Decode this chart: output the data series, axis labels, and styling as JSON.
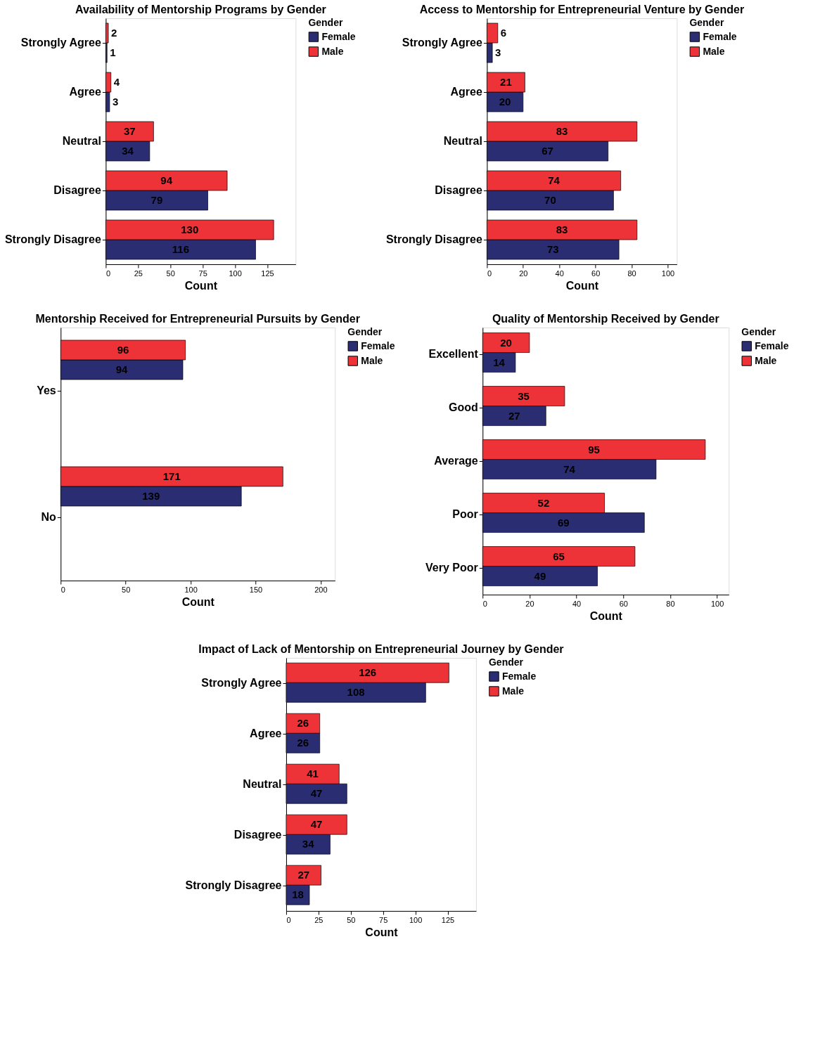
{
  "chart_data": [
    {
      "type": "bar",
      "orientation": "horizontal",
      "title": "Availability of Mentorship Programs by Gender",
      "xlabel": "Count",
      "legend_title": "Gender",
      "legend": "right",
      "grid": false,
      "data_labels": true,
      "categories": [
        "Strongly Agree",
        "Agree",
        "Neutral",
        "Disagree",
        "Strongly Disagree"
      ],
      "xlim": [
        0,
        147
      ],
      "xticks": [
        0,
        25,
        50,
        75,
        100,
        125
      ],
      "series": [
        {
          "name": "Female",
          "color": "#2a2d72",
          "values": [
            1,
            3,
            34,
            79,
            116
          ]
        },
        {
          "name": "Male",
          "color": "#ee3338",
          "values": [
            2,
            4,
            37,
            94,
            130
          ]
        }
      ]
    },
    {
      "type": "bar",
      "orientation": "horizontal",
      "title": "Access to Mentorship for Entrepreneurial Venture by Gender",
      "xlabel": "Count",
      "legend_title": "Gender",
      "legend": "right",
      "grid": false,
      "data_labels": true,
      "categories": [
        "Strongly Agree",
        "Agree",
        "Neutral",
        "Disagree",
        "Strongly Disagree"
      ],
      "xlim": [
        0,
        105
      ],
      "xticks": [
        0,
        20,
        40,
        60,
        80,
        100
      ],
      "series": [
        {
          "name": "Female",
          "color": "#2a2d72",
          "values": [
            3,
            20,
            67,
            70,
            73
          ]
        },
        {
          "name": "Male",
          "color": "#ee3338",
          "values": [
            6,
            21,
            83,
            74,
            83
          ]
        }
      ]
    },
    {
      "type": "bar",
      "orientation": "horizontal",
      "title": "Mentorship Received for Entrepreneurial Pursuits by Gender",
      "xlabel": "Count",
      "legend_title": "Gender",
      "legend": "right",
      "grid": false,
      "data_labels": true,
      "categories": [
        "Yes",
        "No"
      ],
      "xlim": [
        0,
        211
      ],
      "xticks": [
        0,
        50,
        100,
        150,
        200
      ],
      "series": [
        {
          "name": "Female",
          "color": "#2a2d72",
          "values": [
            94,
            139
          ]
        },
        {
          "name": "Male",
          "color": "#ee3338",
          "values": [
            96,
            171
          ]
        }
      ]
    },
    {
      "type": "bar",
      "orientation": "horizontal",
      "title": "Quality of Mentorship Received by Gender",
      "xlabel": "Count",
      "legend_title": "Gender",
      "legend": "right",
      "grid": false,
      "data_labels": true,
      "categories": [
        "Excellent",
        "Good",
        "Average",
        "Poor",
        "Very Poor"
      ],
      "xlim": [
        0,
        105
      ],
      "xticks": [
        0,
        20,
        40,
        60,
        80,
        100
      ],
      "series": [
        {
          "name": "Female",
          "color": "#2a2d72",
          "values": [
            14,
            27,
            74,
            69,
            49
          ]
        },
        {
          "name": "Male",
          "color": "#ee3338",
          "values": [
            20,
            35,
            95,
            52,
            65
          ]
        }
      ]
    },
    {
      "type": "bar",
      "orientation": "horizontal",
      "title": "Impact of Lack of Mentorship on Entrepreneurial Journey by Gender",
      "xlabel": "Count",
      "legend_title": "Gender",
      "legend": "right",
      "grid": false,
      "data_labels": true,
      "categories": [
        "Strongly Agree",
        "Agree",
        "Neutral",
        "Disagree",
        "Strongly Disagree"
      ],
      "xlim": [
        0,
        147
      ],
      "xticks": [
        0,
        25,
        50,
        75,
        100,
        125
      ],
      "series": [
        {
          "name": "Female",
          "color": "#2a2d72",
          "values": [
            108,
            26,
            47,
            34,
            18
          ]
        },
        {
          "name": "Male",
          "color": "#ee3338",
          "values": [
            126,
            26,
            41,
            47,
            27
          ]
        }
      ]
    }
  ]
}
